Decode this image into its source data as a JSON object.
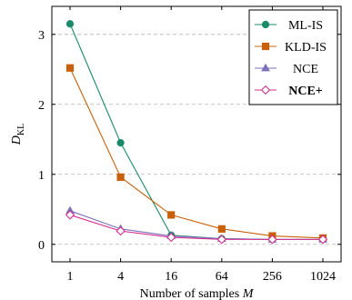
{
  "chart_data": {
    "type": "line",
    "title": "",
    "xlabel": "Number of samples M",
    "ylabel_main": "D",
    "ylabel_sub": "KL",
    "x_scale": "log2",
    "x": [
      1,
      4,
      16,
      64,
      256,
      1024
    ],
    "x_tick_labels": [
      "1",
      "4",
      "16",
      "64",
      "256",
      "1024"
    ],
    "y_ticks": [
      0,
      1,
      2,
      3
    ],
    "y_tick_labels": [
      "0",
      "1",
      "2",
      "3"
    ],
    "ylim": [
      -0.25,
      3.4
    ],
    "grid": "horizontal dashed",
    "legend_position": "top-right",
    "series": [
      {
        "name": "ML-IS",
        "color": "#1a8a6a",
        "marker": "circle",
        "bold": false,
        "values": [
          3.15,
          1.45,
          0.13,
          0.08,
          0.07,
          0.07
        ]
      },
      {
        "name": "KLD-IS",
        "color": "#c8600a",
        "marker": "square",
        "bold": false,
        "values": [
          2.52,
          0.96,
          0.42,
          0.22,
          0.12,
          0.09
        ]
      },
      {
        "name": "NCE",
        "color": "#7b72b8",
        "marker": "triangle",
        "bold": false,
        "values": [
          0.48,
          0.22,
          0.12,
          0.08,
          0.07,
          0.07
        ]
      },
      {
        "name": "NCE+",
        "color": "#d62f91",
        "marker": "diamond",
        "bold": true,
        "values": [
          0.42,
          0.19,
          0.1,
          0.07,
          0.07,
          0.07
        ]
      }
    ]
  }
}
